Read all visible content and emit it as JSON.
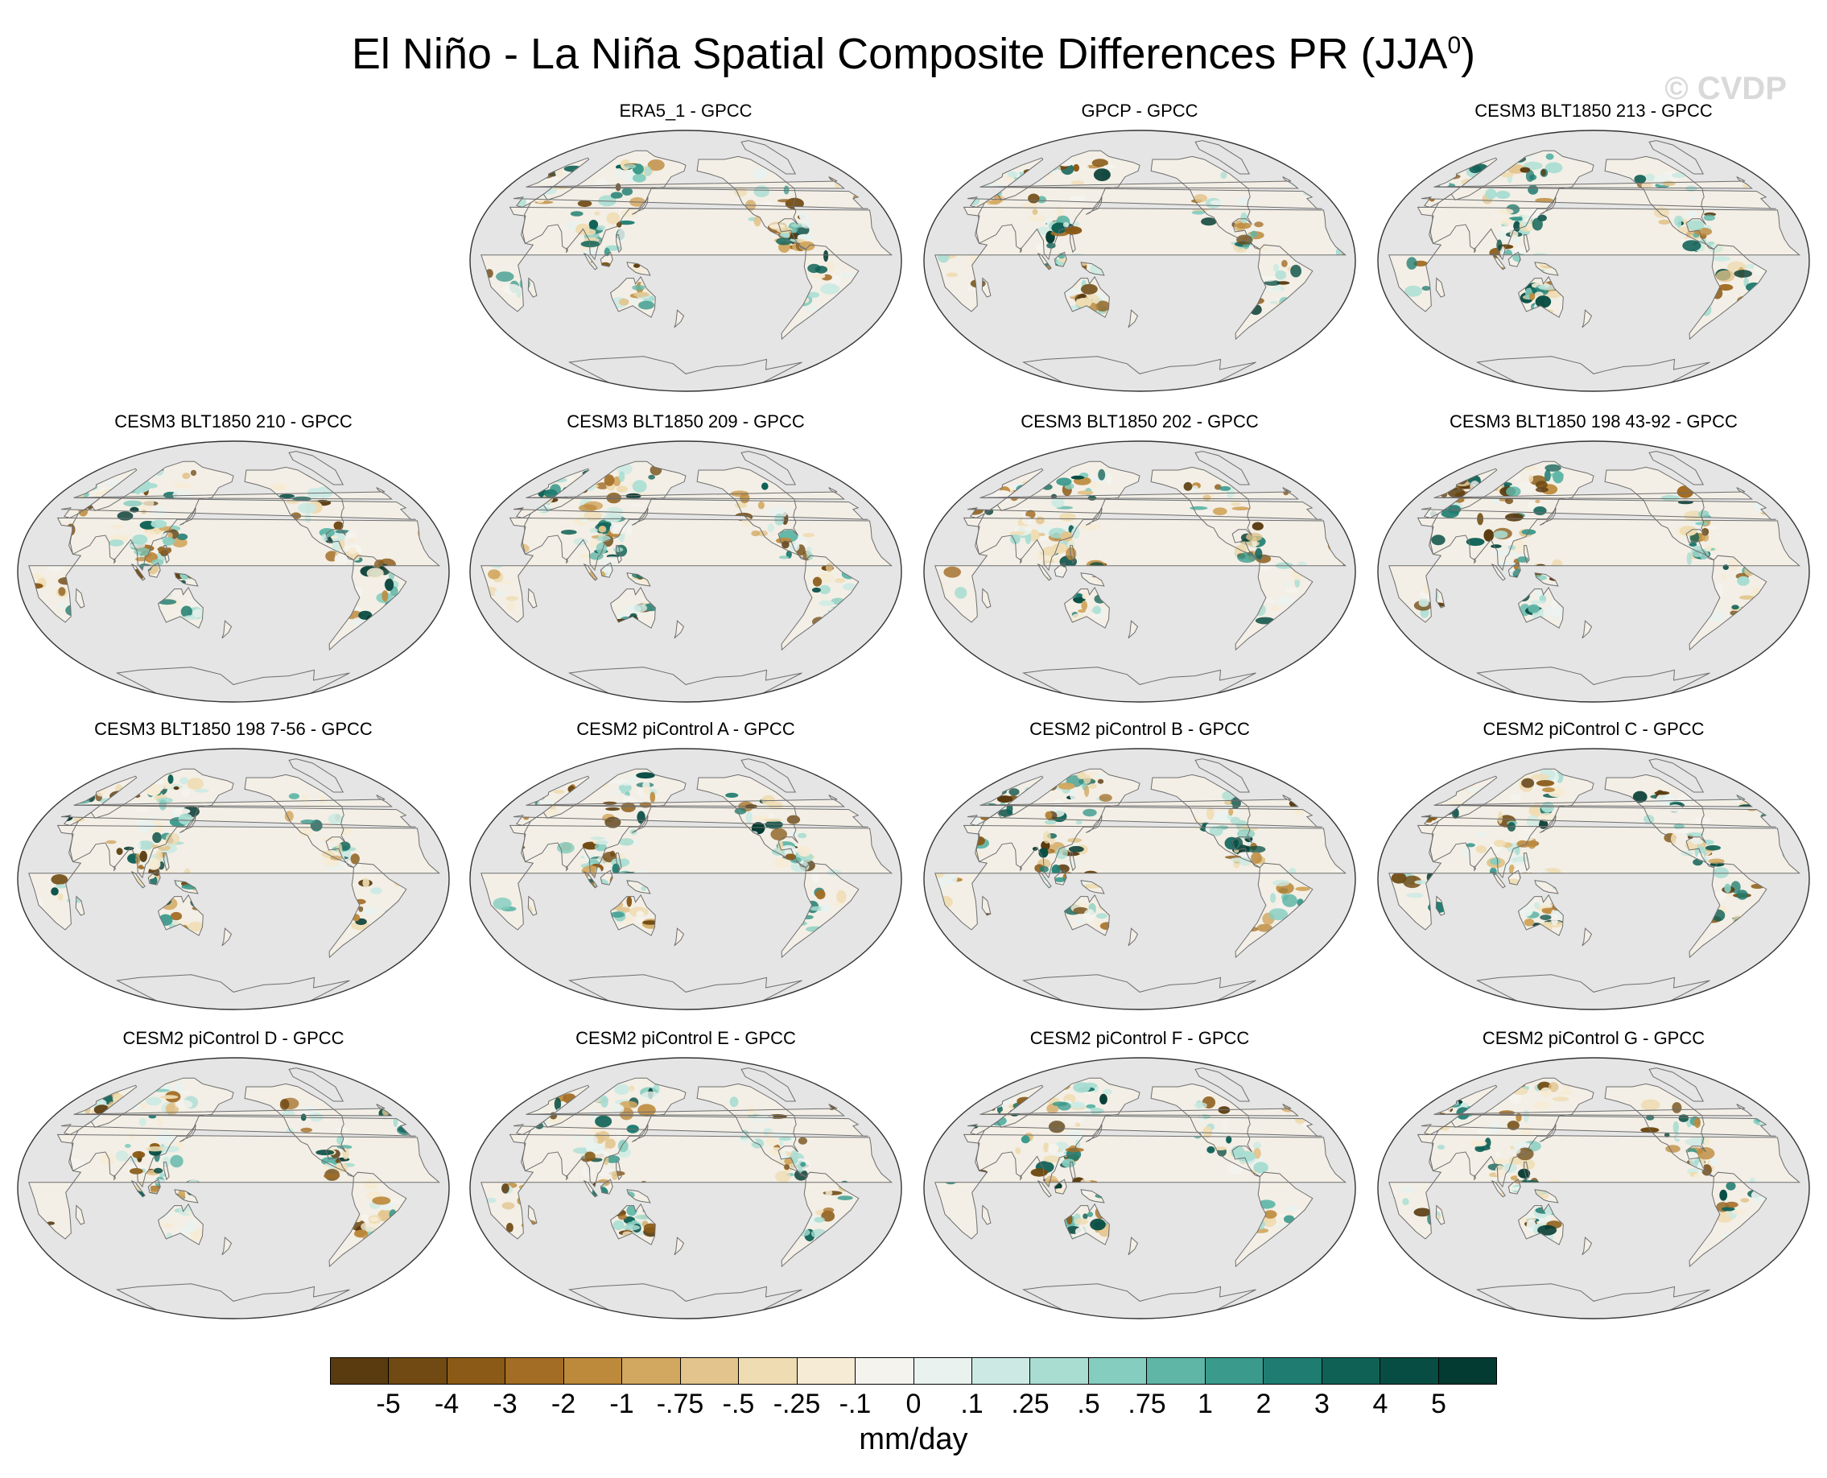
{
  "title": {
    "main": "El Niño - La Niña Spatial Composite Differences PR (JJA",
    "superscript": "0",
    "closing": ")"
  },
  "watermark": "© CVDP",
  "panels": [
    {
      "title": "ERA5_1 - GPCC",
      "row": 0,
      "col": 1
    },
    {
      "title": "GPCP - GPCC",
      "row": 0,
      "col": 2
    },
    {
      "title": "CESM3 BLT1850 213 - GPCC",
      "row": 0,
      "col": 3
    },
    {
      "title": "CESM3 BLT1850 210 - GPCC",
      "row": 1,
      "col": 0
    },
    {
      "title": "CESM3 BLT1850 209 - GPCC",
      "row": 1,
      "col": 1
    },
    {
      "title": "CESM3 BLT1850 202 - GPCC",
      "row": 1,
      "col": 2
    },
    {
      "title": "CESM3 BLT1850 198 43-92 - GPCC",
      "row": 1,
      "col": 3
    },
    {
      "title": "CESM3 BLT1850 198 7-56 - GPCC",
      "row": 2,
      "col": 0
    },
    {
      "title": "CESM2 piControl A - GPCC",
      "row": 2,
      "col": 1
    },
    {
      "title": "CESM2 piControl B - GPCC",
      "row": 2,
      "col": 2
    },
    {
      "title": "CESM2 piControl C - GPCC",
      "row": 2,
      "col": 3
    },
    {
      "title": "CESM2 piControl D - GPCC",
      "row": 3,
      "col": 0
    },
    {
      "title": "CESM2 piControl E - GPCC",
      "row": 3,
      "col": 1
    },
    {
      "title": "CESM2 piControl F - GPCC",
      "row": 3,
      "col": 2
    },
    {
      "title": "CESM2 piControl G - GPCC",
      "row": 3,
      "col": 3
    }
  ],
  "colorbar": {
    "label": "mm/day",
    "ticks": [
      "-5",
      "-4",
      "-3",
      "-2",
      "-1",
      "-.75",
      "-.5",
      "-.25",
      "-.1",
      "0",
      ".1",
      ".25",
      ".5",
      ".75",
      "1",
      "2",
      "3",
      "4",
      "5"
    ],
    "colors": [
      "#5a3b0f",
      "#704a12",
      "#8a5a16",
      "#a36d25",
      "#bd8a3c",
      "#d2a760",
      "#e2c48c",
      "#efdcb2",
      "#f6ebd4",
      "#f5f3ee",
      "#e9f2ef",
      "#cceae3",
      "#a9ddd2",
      "#85cdbf",
      "#5fb6a7",
      "#3a9a8c",
      "#1f7c70",
      "#0f6156",
      "#074d43",
      "#033a31"
    ]
  },
  "map_style": {
    "ocean_color": "#e5e5e5",
    "land_neutral": "#f3efe6",
    "coast_color": "#6e6e6e",
    "outline_color": "#333333"
  }
}
